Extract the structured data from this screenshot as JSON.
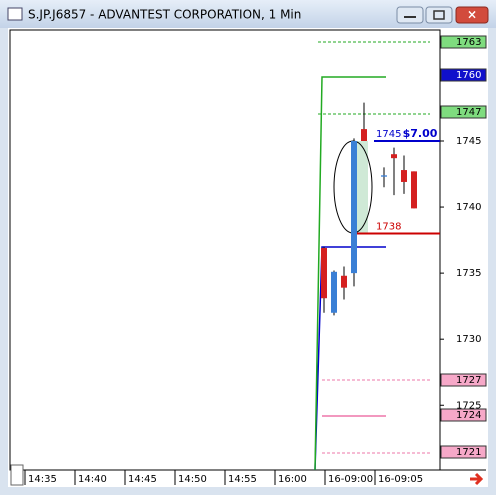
{
  "chart_data": {
    "type": "candlestick",
    "title": "S.JP.J6857 - ADVANTEST CORPORATION, 1 Min",
    "ylim": [
      1720.1,
      1753.4
    ],
    "yticks": [
      1745,
      1740,
      1735,
      1730,
      1725
    ],
    "xtick_labels": [
      "14:35",
      "14:40",
      "14:45",
      "14:50",
      "14:55",
      "16:00",
      "16-09:00",
      "16-09:05"
    ],
    "candles": [
      {
        "open": 1736.9,
        "high": 1737.0,
        "low": 1732.0,
        "close": 1733.1
      },
      {
        "open": 1732.0,
        "high": 1735.2,
        "low": 1731.8,
        "close": 1735.1
      },
      {
        "open": 1734.8,
        "high": 1735.5,
        "low": 1733.0,
        "close": 1733.9
      },
      {
        "open": 1735.0,
        "high": 1745.2,
        "low": 1734.0,
        "close": 1745.0
      },
      {
        "open": 1745.9,
        "high": 1747.9,
        "low": 1745.0,
        "close": 1745.0
      },
      null,
      {
        "open": 1742.3,
        "high": 1743.0,
        "low": 1741.5,
        "close": 1742.4
      },
      {
        "open": 1744.0,
        "high": 1744.5,
        "low": 1740.9,
        "close": 1743.7
      },
      {
        "open": 1742.8,
        "high": 1743.9,
        "low": 1741.0,
        "close": 1741.9
      },
      {
        "open": 1742.7,
        "high": 1742.7,
        "low": 1739.9,
        "close": 1739.9
      }
    ],
    "up_color": "#3a7fd5",
    "down_color": "#d42020",
    "levels": [
      {
        "value": 1745,
        "color": "#0000cc"
      },
      {
        "value": 1738,
        "color": "#cc0000"
      }
    ],
    "annotation": "$7.00",
    "right_labels": [
      "1763",
      "1760",
      "1747",
      "1727",
      "1724",
      "1721"
    ]
  }
}
